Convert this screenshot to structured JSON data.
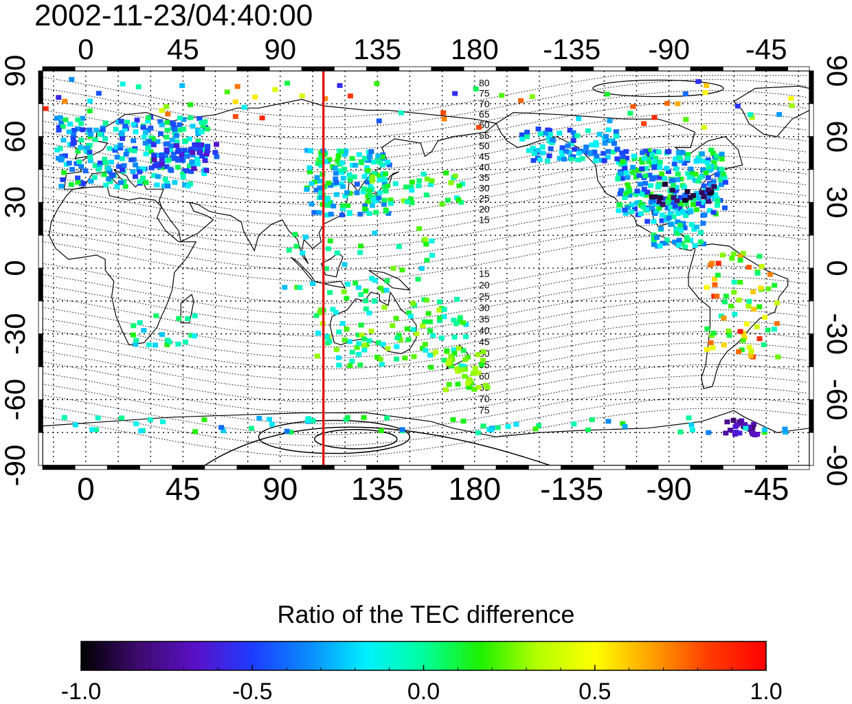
{
  "timestamp": "2002-11-23/04:40:00",
  "lon_ticks": [
    "0",
    "45",
    "90",
    "135",
    "180",
    "-135",
    "-90",
    "-45"
  ],
  "lon_values": [
    0,
    45,
    90,
    135,
    180,
    225,
    270,
    315
  ],
  "lat_ticks": [
    "90",
    "60",
    "30",
    "0",
    "-30",
    "-60",
    "-90"
  ],
  "lat_values": [
    90,
    60,
    30,
    0,
    -30,
    -60,
    -90
  ],
  "map": {
    "lon_range_deg": [
      -20,
      335
    ],
    "lat_range_deg": [
      -90,
      90
    ],
    "grid": "dotted every 15 degrees",
    "marker_line_lon_deg": 110,
    "marker_line_color": "#e01818",
    "contour_labels_north": [
      "80",
      "75",
      "70",
      "65",
      "60",
      "55",
      "50",
      "45",
      "40",
      "35",
      "30",
      "25",
      "20",
      "15"
    ],
    "contour_labels_south": [
      "15",
      "20",
      "25",
      "30",
      "35",
      "40",
      "45",
      "50",
      "55",
      "60",
      "65",
      "70",
      "75"
    ]
  },
  "colorbar": {
    "title": "Ratio of the TEC difference",
    "tick_labels": [
      "-1.0",
      "-0.5",
      "0.0",
      "0.5",
      "1.0"
    ],
    "tick_values": [
      -1.0,
      -0.5,
      0.0,
      0.5,
      1.0
    ],
    "colors": [
      "#000000",
      "#3d0a6e",
      "#5a10c8",
      "#1e3cff",
      "#0a8cff",
      "#00f0ff",
      "#00ff9c",
      "#1ef000",
      "#b4ff00",
      "#ffff00",
      "#ffa000",
      "#ff3c00",
      "#ff0000"
    ]
  }
}
